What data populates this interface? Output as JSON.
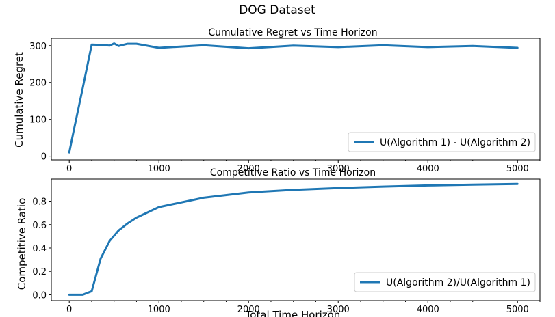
{
  "figure_title": "DOG Dataset",
  "colors": {
    "series": "#1f77b4",
    "axes": "#000000",
    "legend_border": "#cccccc"
  },
  "chart_data": [
    {
      "type": "line",
      "title": "Cumulative Regret vs Time Horizon",
      "xlabel": "",
      "ylabel": "Cumulative Regret",
      "xlim": [
        -200,
        5250
      ],
      "ylim": [
        -10,
        320
      ],
      "xticks": [
        0,
        1000,
        2000,
        3000,
        4000,
        5000
      ],
      "yticks": [
        0,
        100,
        200,
        300
      ],
      "grid": false,
      "legend_position": "lower-right",
      "series": [
        {
          "name": "U(Algorithm 1) - U(Algorithm 2)",
          "x": [
            0,
            50,
            150,
            250,
            350,
            450,
            500,
            550,
            650,
            750,
            1000,
            1500,
            2000,
            2500,
            3000,
            3500,
            4000,
            4500,
            5000
          ],
          "y": [
            10,
            70,
            185,
            303,
            302,
            300,
            306,
            299,
            305,
            305,
            294,
            301,
            293,
            300,
            296,
            301,
            296,
            299,
            294
          ]
        }
      ]
    },
    {
      "type": "line",
      "title": "Competitive Ratio vs Time Horizon",
      "xlabel": "Total Time Horizon",
      "ylabel": "Competitive  Ratio",
      "xlim": [
        -200,
        5250
      ],
      "ylim": [
        -0.05,
        0.99
      ],
      "xticks": [
        0,
        1000,
        2000,
        3000,
        4000,
        5000
      ],
      "yticks": [
        0.0,
        0.2,
        0.4,
        0.6,
        0.8
      ],
      "grid": false,
      "legend_position": "lower-right",
      "series": [
        {
          "name": "U(Algorithm 2)/U(Algorithm 1)",
          "x": [
            0,
            150,
            250,
            350,
            450,
            550,
            650,
            750,
            1000,
            1500,
            2000,
            2500,
            3000,
            3500,
            4000,
            4500,
            5000
          ],
          "y": [
            0.0,
            0.0,
            0.03,
            0.31,
            0.46,
            0.55,
            0.61,
            0.66,
            0.75,
            0.83,
            0.875,
            0.897,
            0.913,
            0.925,
            0.935,
            0.942,
            0.948
          ]
        }
      ]
    }
  ]
}
